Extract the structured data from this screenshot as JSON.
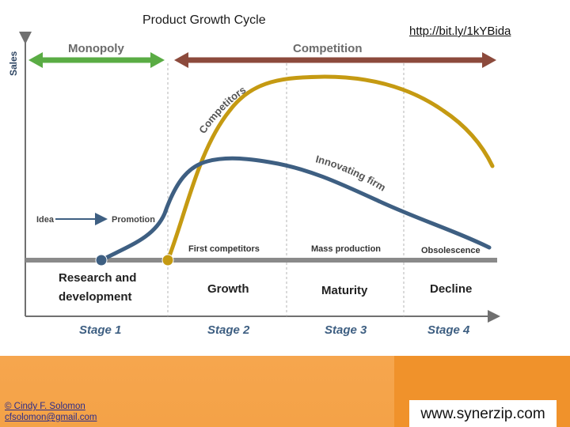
{
  "title": "Product Growth Cycle",
  "link": "http://bit.ly/1kYBida",
  "diagram": {
    "y_axis_label": "Sales",
    "monopoly": "Monopoly",
    "competition": "Competition",
    "competitors": "Competitors",
    "innovating_firm": "Innovating firm",
    "idea": "Idea",
    "promotion": "Promotion",
    "first_competitors": "First competitors",
    "mass_production": "Mass production",
    "obsolescence": "Obsolescence",
    "phases": {
      "research_line1": "Research and",
      "research_line2": "development",
      "growth": "Growth",
      "maturity": "Maturity",
      "decline": "Decline"
    },
    "stages": [
      "Stage 1",
      "Stage 2",
      "Stage 3",
      "Stage 4"
    ],
    "colors": {
      "innovator_curve": "#3e5f82",
      "competitor_curve": "#c59a12",
      "monopoly_arrow": "#5aac44",
      "competition_arrow": "#8c4a3c",
      "baseline": "#8a8a8a"
    }
  },
  "footer": {
    "credit_name": "© Cindy F. Solomon",
    "credit_email": "cfsolomon@gmail.com",
    "website": "www.synerzip.com"
  }
}
